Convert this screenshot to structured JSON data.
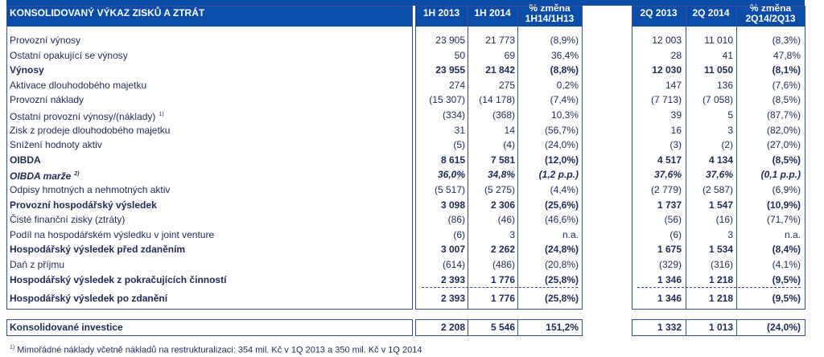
{
  "headers": {
    "title": "KONSOLIDOVANÝ VÝKAZ ZISKŮ A ZTRÁT",
    "h1_2013": "1H 2013",
    "h1_2014": "1H 2014",
    "h1_change_line1": "% změna",
    "h1_change_line2": "1H14/1H13",
    "q2_2013": "2Q 2013",
    "q2_2014": "2Q 2014",
    "q2_change_line1": "% změna",
    "q2_change_line2": "2Q14/2Q13"
  },
  "rows": [
    {
      "label": "Provozní výnosy",
      "style": "",
      "sup": "",
      "v": [
        "23 905",
        "21 773",
        "(8,9%)",
        "12 003",
        "11 010",
        "(8,3%)"
      ]
    },
    {
      "label": "Ostatní opakující se výnosy",
      "style": "",
      "sup": "",
      "v": [
        "50",
        "69",
        "36,4%",
        "28",
        "41",
        "47,8%"
      ]
    },
    {
      "label": "Výnosy",
      "style": "b",
      "sup": "",
      "v": [
        "23 955",
        "21 842",
        "(8,8%)",
        "12 030",
        "11 050",
        "(8,1%)"
      ]
    },
    {
      "label": "Aktivace dlouhodobého majetku",
      "style": "",
      "sup": "",
      "v": [
        "274",
        "275",
        "0,2%",
        "147",
        "136",
        "(7,6%)"
      ]
    },
    {
      "label": "Provozní náklady",
      "style": "",
      "sup": "",
      "v": [
        "(15 307)",
        "(14 178)",
        "(7,4%)",
        "(7 713)",
        "(7 058)",
        "(8,5%)"
      ]
    },
    {
      "label": "Ostatní provozní výnosy/(náklady)",
      "style": "",
      "sup": "1)",
      "v": [
        "(334)",
        "(368)",
        "10,3%",
        "39",
        "5",
        "(87,7%)"
      ]
    },
    {
      "label": "Zisk z prodeje dlouhodobého majetku",
      "style": "",
      "sup": "",
      "v": [
        "31",
        "14",
        "(56,7%)",
        "16",
        "3",
        "(82,0%)"
      ]
    },
    {
      "label": "Snížení hodnoty aktiv",
      "style": "",
      "sup": "",
      "v": [
        "(5)",
        "(4)",
        "(24,0%)",
        "(3)",
        "(2)",
        "(27,0%)"
      ]
    },
    {
      "label": "OIBDA",
      "style": "b",
      "sup": "",
      "v": [
        "8 615",
        "7 581",
        "(12,0%)",
        "4 517",
        "4 134",
        "(8,5%)"
      ]
    },
    {
      "label": "OIBDA marže",
      "style": "bi",
      "sup": "2)",
      "v": [
        "36,0%",
        "34,8%",
        "(1,2 p.p.)",
        "37,6%",
        "37,6%",
        "(0,1 p.p.)"
      ]
    },
    {
      "label": "Odpisy hmotných a nehmotných aktiv",
      "style": "",
      "sup": "",
      "v": [
        "(5 517)",
        "(5 275)",
        "(4,4%)",
        "(2 779)",
        "(2 587)",
        "(6,9%)"
      ]
    },
    {
      "label": "Provozní hospodářský výsledek",
      "style": "b",
      "sup": "",
      "v": [
        "3 098",
        "2 306",
        "(25,6%)",
        "1 737",
        "1 547",
        "(10,9%)"
      ]
    },
    {
      "label": "Čisté finanční zisky (ztráty)",
      "style": "",
      "sup": "",
      "v": [
        "(86)",
        "(46)",
        "(46,6%)",
        "(56)",
        "(16)",
        "(71,7%)"
      ]
    },
    {
      "label": "Podíl na hospodářském výsledku v joint venture",
      "style": "",
      "sup": "",
      "v": [
        "(6)",
        "3",
        "n.a.",
        "(6)",
        "3",
        "n.a."
      ]
    },
    {
      "label": "Hospodářský výsledek před zdaněním",
      "style": "b",
      "sup": "",
      "v": [
        "3 007",
        "2 262",
        "(24,8%)",
        "1 675",
        "1 534",
        "(8,4%)"
      ]
    },
    {
      "label": "Daň z příjmu",
      "style": "",
      "sup": "",
      "v": [
        "(614)",
        "(486)",
        "(20,8%)",
        "(329)",
        "(316)",
        "(4,1%)"
      ]
    },
    {
      "label": "Hospodářský výsledek z pokračujících činností",
      "style": "b",
      "sup": "",
      "v": [
        "2 393",
        "1 776",
        "(25,8%)",
        "1 346",
        "1 218",
        "(9,5%)"
      ]
    }
  ],
  "net": {
    "label": "Hospodářský výsledek po zdanění",
    "v": [
      "2 393",
      "1 776",
      "(25,8%)",
      "1 346",
      "1 218",
      "(9,5%)"
    ]
  },
  "investment": {
    "label": "Konsolidované investice",
    "v": [
      "2 208",
      "5 546",
      "151,2%",
      "1 332",
      "1 013",
      "(24,0%)"
    ]
  },
  "footnote": {
    "sup": "1)",
    "text": "Mimořádné náklady včetně nákladů na restrukturalizaci: 354 mil. Kč v 1Q 2013 a 350 mil. Kč v 1Q 2014"
  },
  "colors": {
    "header_bg": "#0a4da8",
    "text": "#1f2a55",
    "border": "#3b4f8c"
  }
}
